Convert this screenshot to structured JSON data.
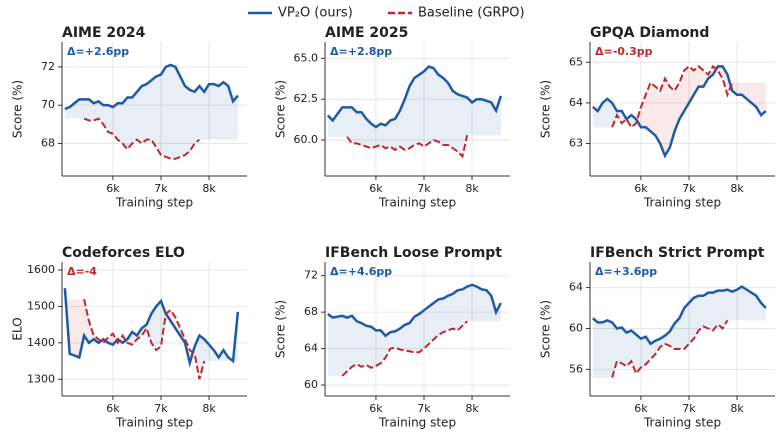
{
  "chart_data": [
    {
      "type": "line",
      "title": "AIME 2024",
      "annotation": "Δ=+2.6pp",
      "annotation_color": "#1f5aa6",
      "x_label": "Training step",
      "y_label": "Score (%)",
      "grid": true,
      "xlim": [
        4940,
        8790
      ],
      "xticks": [
        {
          "value": 6000,
          "label": "6k"
        },
        {
          "value": 7000,
          "label": "7k"
        },
        {
          "value": 8000,
          "label": "8k"
        }
      ],
      "ylim": [
        66.3,
        73.3
      ],
      "yticks": [
        68,
        70,
        72
      ],
      "series": [
        {
          "name": "VP₂O (ours)",
          "color": "#1f5aa6",
          "style": "solid",
          "x": [
            5000,
            5100,
            5200,
            5300,
            5400,
            5500,
            5600,
            5700,
            5800,
            5900,
            6000,
            6100,
            6200,
            6300,
            6400,
            6500,
            6600,
            6700,
            6800,
            6900,
            7000,
            7100,
            7200,
            7300,
            7400,
            7500,
            7600,
            7700,
            7800,
            7900,
            8000,
            8100,
            8200,
            8300,
            8400,
            8500,
            8600
          ],
          "values": [
            69.8,
            69.9,
            70.1,
            70.3,
            70.3,
            70.3,
            70.1,
            70.2,
            70.0,
            70.0,
            69.9,
            70.1,
            70.1,
            70.4,
            70.4,
            70.7,
            71.0,
            71.1,
            71.3,
            71.5,
            71.6,
            72.0,
            72.1,
            72.0,
            71.5,
            71.0,
            70.8,
            70.7,
            71.0,
            70.7,
            71.1,
            71.1,
            71.0,
            71.2,
            71.0,
            70.2,
            70.5
          ]
        },
        {
          "name": "Baseline (GRPO)",
          "color": "#c0282d",
          "style": "dashed",
          "x": [
            5400,
            5500,
            5600,
            5700,
            5800,
            5900,
            6000,
            6100,
            6200,
            6300,
            6400,
            6500,
            6600,
            6700,
            6800,
            6900,
            7000,
            7100,
            7200,
            7300,
            7400,
            7500,
            7600,
            7700,
            7800
          ],
          "values": [
            69.3,
            69.2,
            69.2,
            69.3,
            69.0,
            68.6,
            68.5,
            68.2,
            68.0,
            67.7,
            68.0,
            68.2,
            68.0,
            68.2,
            68.2,
            67.8,
            67.4,
            67.3,
            67.2,
            67.2,
            67.3,
            67.4,
            67.6,
            68.0,
            68.2
          ]
        }
      ]
    },
    {
      "type": "line",
      "title": "AIME 2025",
      "annotation": "Δ=+2.8pp",
      "annotation_color": "#1f5aa6",
      "x_label": "Training step",
      "y_label": "Score (%)",
      "grid": true,
      "xlim": [
        4940,
        8790
      ],
      "xticks": [
        {
          "value": 6000,
          "label": "6k"
        },
        {
          "value": 7000,
          "label": "7k"
        },
        {
          "value": 8000,
          "label": "8k"
        }
      ],
      "ylim": [
        57.8,
        66.0
      ],
      "yticks": [
        {
          "value": 60,
          "label": "60.0"
        },
        62.5,
        {
          "value": 65,
          "label": "65.0"
        }
      ],
      "series": [
        {
          "name": "VP₂O (ours)",
          "color": "#1f5aa6",
          "style": "solid",
          "x": [
            5000,
            5100,
            5200,
            5300,
            5400,
            5500,
            5600,
            5700,
            5800,
            5900,
            6000,
            6100,
            6200,
            6300,
            6400,
            6500,
            6600,
            6700,
            6800,
            6900,
            7000,
            7100,
            7200,
            7300,
            7400,
            7500,
            7600,
            7700,
            7800,
            7900,
            8000,
            8100,
            8200,
            8300,
            8400,
            8500,
            8600
          ],
          "values": [
            61.5,
            61.2,
            61.6,
            62.0,
            62.0,
            62.0,
            61.7,
            61.7,
            61.3,
            61.0,
            60.8,
            61.0,
            60.9,
            61.2,
            61.3,
            61.8,
            62.5,
            63.3,
            63.8,
            64.0,
            64.2,
            64.5,
            64.4,
            64.0,
            63.8,
            63.5,
            63.0,
            62.8,
            62.7,
            62.6,
            62.3,
            62.5,
            62.5,
            62.4,
            62.3,
            61.8,
            62.7
          ]
        },
        {
          "name": "Baseline (GRPO)",
          "color": "#c0282d",
          "style": "dashed",
          "x": [
            5400,
            5500,
            5600,
            5700,
            5800,
            5900,
            6000,
            6100,
            6200,
            6300,
            6400,
            6500,
            6600,
            6700,
            6800,
            6900,
            7000,
            7100,
            7200,
            7300,
            7400,
            7500,
            7600,
            7700,
            7800,
            7900
          ],
          "values": [
            60.2,
            59.8,
            59.8,
            59.7,
            59.6,
            59.5,
            59.6,
            59.7,
            59.5,
            59.6,
            59.4,
            59.6,
            59.4,
            59.5,
            59.7,
            59.8,
            59.6,
            59.8,
            60.0,
            59.9,
            59.7,
            59.7,
            59.5,
            59.3,
            59.0,
            60.3
          ]
        }
      ]
    },
    {
      "type": "line",
      "title": "GPQA Diamond",
      "annotation": "Δ=-0.3pp",
      "annotation_color": "#c0282d",
      "x_label": "Training step",
      "y_label": "Score (%)",
      "grid": true,
      "xlim": [
        4940,
        8790
      ],
      "xticks": [
        {
          "value": 6000,
          "label": "6k"
        },
        {
          "value": 7000,
          "label": "7k"
        },
        {
          "value": 8000,
          "label": "8k"
        }
      ],
      "ylim": [
        62.2,
        65.5
      ],
      "yticks": [
        63,
        64,
        65
      ],
      "series": [
        {
          "name": "VP₂O (ours)",
          "color": "#1f5aa6",
          "style": "solid",
          "x": [
            5000,
            5100,
            5200,
            5300,
            5400,
            5500,
            5600,
            5700,
            5800,
            5900,
            6000,
            6100,
            6200,
            6300,
            6400,
            6500,
            6600,
            6700,
            6800,
            6900,
            7000,
            7100,
            7200,
            7300,
            7400,
            7500,
            7600,
            7700,
            7800,
            7900,
            8000,
            8100,
            8200,
            8300,
            8400,
            8500,
            8600
          ],
          "values": [
            63.9,
            63.8,
            64.0,
            64.1,
            64.0,
            63.8,
            63.8,
            63.6,
            63.7,
            63.6,
            63.4,
            63.4,
            63.3,
            63.2,
            63.0,
            62.7,
            62.9,
            63.3,
            63.6,
            63.8,
            64.0,
            64.2,
            64.4,
            64.4,
            64.6,
            64.7,
            64.9,
            64.9,
            64.7,
            64.3,
            64.2,
            64.2,
            64.1,
            64.0,
            63.9,
            63.7,
            63.8
          ]
        },
        {
          "name": "Baseline (GRPO)",
          "color": "#c0282d",
          "style": "dashed",
          "x": [
            5400,
            5500,
            5600,
            5700,
            5800,
            5900,
            6000,
            6100,
            6200,
            6300,
            6400,
            6500,
            6600,
            6700,
            6800,
            6900,
            7000,
            7100,
            7200,
            7300,
            7400,
            7500,
            7600,
            7700,
            7800,
            7900
          ],
          "values": [
            63.4,
            63.7,
            63.5,
            63.6,
            63.4,
            63.5,
            63.9,
            64.2,
            64.5,
            64.4,
            64.3,
            64.6,
            64.4,
            64.3,
            64.5,
            64.8,
            64.9,
            64.8,
            64.9,
            64.8,
            64.7,
            64.9,
            64.8,
            64.6,
            64.2,
            64.5
          ]
        }
      ]
    },
    {
      "type": "line",
      "title": "Codeforces ELO",
      "annotation": "Δ=-4",
      "annotation_color": "#c0282d",
      "x_label": "Training step",
      "y_label": "ELO",
      "grid": true,
      "xlim": [
        4940,
        8790
      ],
      "xticks": [
        {
          "value": 6000,
          "label": "6k"
        },
        {
          "value": 7000,
          "label": "7k"
        },
        {
          "value": 8000,
          "label": "8k"
        }
      ],
      "ylim": [
        1254,
        1622
      ],
      "yticks": [
        1300,
        1400,
        1500,
        1600
      ],
      "series": [
        {
          "name": "VP₂O (ours)",
          "color": "#1f5aa6",
          "style": "solid",
          "x": [
            5000,
            5100,
            5200,
            5300,
            5400,
            5500,
            5600,
            5700,
            5800,
            5900,
            6000,
            6100,
            6200,
            6300,
            6400,
            6500,
            6600,
            6700,
            6800,
            6900,
            7000,
            7100,
            7200,
            7300,
            7400,
            7500,
            7600,
            7700,
            7800,
            7900,
            8000,
            8100,
            8200,
            8300,
            8400,
            8500,
            8600
          ],
          "values": [
            1550,
            1370,
            1365,
            1360,
            1420,
            1400,
            1410,
            1400,
            1410,
            1400,
            1395,
            1410,
            1400,
            1410,
            1430,
            1420,
            1440,
            1450,
            1480,
            1500,
            1515,
            1480,
            1460,
            1440,
            1420,
            1400,
            1345,
            1390,
            1420,
            1410,
            1395,
            1380,
            1360,
            1380,
            1360,
            1350,
            1485
          ]
        },
        {
          "name": "Baseline (GRPO)",
          "color": "#c0282d",
          "style": "dashed",
          "x": [
            5400,
            5500,
            5600,
            5700,
            5800,
            5900,
            6000,
            6100,
            6200,
            6300,
            6400,
            6500,
            6600,
            6700,
            6800,
            6900,
            7000,
            7100,
            7200,
            7300,
            7400,
            7500,
            7600,
            7700,
            7800,
            7900
          ],
          "values": [
            1520,
            1460,
            1420,
            1410,
            1400,
            1415,
            1425,
            1400,
            1420,
            1400,
            1395,
            1410,
            1420,
            1440,
            1400,
            1380,
            1390,
            1480,
            1490,
            1470,
            1440,
            1410,
            1380,
            1370,
            1300,
            1350
          ]
        }
      ]
    },
    {
      "type": "line",
      "title": "IFBench Loose Prompt",
      "annotation": "Δ=+4.6pp",
      "annotation_color": "#1f5aa6",
      "x_label": "Training step",
      "y_label": "Score (%)",
      "grid": true,
      "xlim": [
        4940,
        8790
      ],
      "xticks": [
        {
          "value": 6000,
          "label": "6k"
        },
        {
          "value": 7000,
          "label": "7k"
        },
        {
          "value": 8000,
          "label": "8k"
        }
      ],
      "ylim": [
        58.8,
        73.5
      ],
      "yticks": [
        60,
        64,
        68,
        72
      ],
      "series": [
        {
          "name": "VP₂O (ours)",
          "color": "#1f5aa6",
          "style": "solid",
          "x": [
            5000,
            5100,
            5200,
            5300,
            5400,
            5500,
            5600,
            5700,
            5800,
            5900,
            6000,
            6100,
            6200,
            6300,
            6400,
            6500,
            6600,
            6700,
            6800,
            6900,
            7000,
            7100,
            7200,
            7300,
            7400,
            7500,
            7600,
            7700,
            7800,
            7900,
            8000,
            8100,
            8200,
            8300,
            8400,
            8500,
            8600
          ],
          "values": [
            67.8,
            67.4,
            67.5,
            67.6,
            67.4,
            67.6,
            67.0,
            66.8,
            66.5,
            66.4,
            66.0,
            66.0,
            65.4,
            65.8,
            65.9,
            66.2,
            66.6,
            66.8,
            67.5,
            67.8,
            68.2,
            68.6,
            69.0,
            69.4,
            69.5,
            69.8,
            70.0,
            70.4,
            70.5,
            70.8,
            71.0,
            70.8,
            70.5,
            70.4,
            69.8,
            68.0,
            69.0
          ]
        },
        {
          "name": "Baseline (GRPO)",
          "color": "#c0282d",
          "style": "dashed",
          "x": [
            5300,
            5400,
            5500,
            5600,
            5700,
            5800,
            5900,
            6000,
            6100,
            6200,
            6300,
            6400,
            6500,
            6600,
            6700,
            6800,
            6900,
            7000,
            7100,
            7200,
            7300,
            7400,
            7500,
            7600,
            7700,
            7800,
            7900
          ],
          "values": [
            61.0,
            61.5,
            62.0,
            62.3,
            62.0,
            62.2,
            61.9,
            62.1,
            62.4,
            63.0,
            64.0,
            64.1,
            63.9,
            63.8,
            63.7,
            63.6,
            63.6,
            64.0,
            64.5,
            65.0,
            65.5,
            65.8,
            66.0,
            66.2,
            66.0,
            66.5,
            67.0
          ]
        }
      ]
    },
    {
      "type": "line",
      "title": "IFBench Strict Prompt",
      "annotation": "Δ=+3.6pp",
      "annotation_color": "#1f5aa6",
      "x_label": "Training step",
      "y_label": "Score (%)",
      "grid": true,
      "xlim": [
        4940,
        8790
      ],
      "xticks": [
        {
          "value": 6000,
          "label": "6k"
        },
        {
          "value": 7000,
          "label": "7k"
        },
        {
          "value": 8000,
          "label": "8k"
        }
      ],
      "ylim": [
        53.4,
        66.5
      ],
      "yticks": [
        56,
        60,
        64
      ],
      "series": [
        {
          "name": "VP₂O (ours)",
          "color": "#1f5aa6",
          "style": "solid",
          "x": [
            5000,
            5100,
            5200,
            5300,
            5400,
            5500,
            5600,
            5700,
            5800,
            5900,
            6000,
            6100,
            6200,
            6300,
            6400,
            6500,
            6600,
            6700,
            6800,
            6900,
            7000,
            7100,
            7200,
            7300,
            7400,
            7500,
            7600,
            7700,
            7800,
            7900,
            8000,
            8100,
            8200,
            8300,
            8400,
            8500,
            8600
          ],
          "values": [
            61.0,
            60.6,
            60.6,
            60.8,
            60.6,
            60.0,
            60.1,
            59.6,
            59.8,
            59.4,
            59.0,
            59.2,
            58.5,
            58.8,
            59.0,
            59.3,
            59.7,
            60.5,
            61.0,
            62.0,
            62.5,
            63.0,
            63.2,
            63.2,
            63.5,
            63.5,
            63.7,
            63.7,
            63.8,
            63.6,
            63.8,
            64.1,
            63.8,
            63.5,
            63.2,
            62.5,
            62.0
          ]
        },
        {
          "name": "Baseline (GRPO)",
          "color": "#c0282d",
          "style": "dashed",
          "x": [
            5400,
            5500,
            5600,
            5700,
            5800,
            5900,
            6000,
            6100,
            6200,
            6300,
            6400,
            6500,
            6600,
            6700,
            6800,
            6900,
            7000,
            7100,
            7200,
            7300,
            7400,
            7500,
            7600,
            7700,
            7800
          ],
          "values": [
            55.2,
            56.8,
            56.6,
            56.3,
            56.8,
            55.6,
            56.2,
            56.5,
            57.0,
            57.5,
            58.2,
            58.5,
            58.3,
            58.0,
            58.0,
            58.0,
            58.5,
            59.0,
            59.8,
            60.2,
            60.0,
            59.8,
            60.4,
            60.0,
            60.8
          ]
        }
      ]
    }
  ]
}
